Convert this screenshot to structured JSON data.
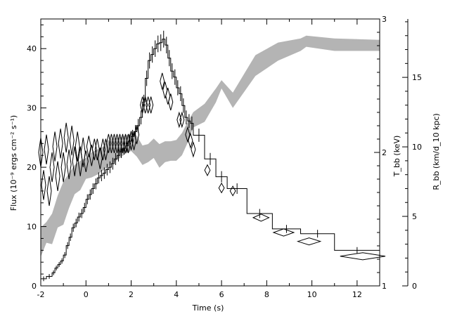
{
  "chart_data": {
    "type": "line",
    "xlabel": "Time (s)",
    "ylabel_left": "Flux (10⁻⁹ ergs cm⁻² s⁻¹)",
    "ylabel_right_inner": "T_bb (keV)",
    "ylabel_right_outer": "R_bb (km/d_10 kpc)",
    "xlim": [
      -2,
      13
    ],
    "ylim_flux": [
      0,
      45
    ],
    "ylim_temperature": [
      1,
      3
    ],
    "ylim_radius": [
      0,
      19.2
    ],
    "x_ticks": [
      -2,
      0,
      2,
      4,
      6,
      8,
      10,
      12
    ],
    "flux_ticks": [
      0,
      10,
      20,
      30,
      40
    ],
    "temperature_ticks": [
      1,
      2,
      3
    ],
    "radius_ticks": [
      0,
      5,
      10,
      15
    ],
    "grid": false,
    "legend": "none",
    "series": [
      {
        "name": "",
        "kind": "step",
        "x": [
          -2.0,
          -1.75,
          -1.5,
          -1.375,
          -1.25,
          -1.125,
          -1.0,
          -0.875,
          -0.75,
          -0.625,
          -0.5,
          -0.375,
          -0.25,
          -0.125,
          0.0,
          0.125,
          0.25,
          0.375,
          0.5,
          0.625,
          0.75,
          0.875,
          1.0,
          1.125,
          1.25,
          1.375,
          1.5,
          1.625,
          1.75,
          1.875,
          2.0,
          2.125,
          2.25,
          2.375,
          2.5,
          2.625,
          2.75,
          2.875,
          3.0,
          3.125,
          3.25,
          3.375,
          3.5,
          3.625,
          3.75,
          3.875,
          4.0,
          4.125,
          4.25,
          4.375,
          4.5,
          4.625,
          4.75,
          5.25,
          5.75,
          6.25,
          7.125,
          8.25,
          9.5,
          11.0
        ],
        "x_end": 13.0,
        "values": [
          1.2,
          1.6,
          2.2,
          3.0,
          3.6,
          4.2,
          5.2,
          6.8,
          8.2,
          9.8,
          10.6,
          11.6,
          12.2,
          13.2,
          14.6,
          15.4,
          16.4,
          17.2,
          18.2,
          18.6,
          19.0,
          19.6,
          20.0,
          20.6,
          21.4,
          22.0,
          22.6,
          23.2,
          23.6,
          24.4,
          25.2,
          26.0,
          27.0,
          28.4,
          31.0,
          35.0,
          38.0,
          39.0,
          40.0,
          40.8,
          41.0,
          41.6,
          40.6,
          38.4,
          36.2,
          35.2,
          33.4,
          32.4,
          30.4,
          28.4,
          27.8,
          27.4,
          25.4,
          21.4,
          18.4,
          16.4,
          12.2,
          9.6,
          8.8,
          6.0
        ]
      },
      {
        "name": "",
        "kind": "diamond-markers",
        "x": [
          -2.0,
          -1.875,
          -1.75,
          -1.625,
          -1.5,
          -1.375,
          -1.25,
          -1.125,
          -1.0,
          -0.875,
          -0.75,
          -0.625,
          -0.5,
          -0.375,
          -0.25,
          -0.125,
          0.0,
          0.125,
          0.25,
          0.375,
          0.5,
          0.625,
          0.75,
          0.875,
          1.0,
          1.125,
          1.25,
          1.375,
          1.5,
          1.625,
          1.75,
          1.875,
          2.0,
          2.125,
          2.25,
          2.5,
          2.625,
          2.75,
          2.875,
          3.375,
          3.5,
          3.625,
          3.75,
          4.125,
          4.25,
          4.5,
          4.625,
          4.75,
          5.375,
          6.0,
          6.5,
          7.75,
          8.75,
          9.875,
          12.25
        ],
        "x_half_width": [
          0.06,
          0.06,
          0.06,
          0.06,
          0.06,
          0.06,
          0.06,
          0.06,
          0.06,
          0.06,
          0.06,
          0.06,
          0.06,
          0.06,
          0.06,
          0.06,
          0.06,
          0.06,
          0.06,
          0.06,
          0.06,
          0.06,
          0.06,
          0.06,
          0.06,
          0.06,
          0.06,
          0.06,
          0.06,
          0.06,
          0.06,
          0.06,
          0.06,
          0.06,
          0.06,
          0.06,
          0.06,
          0.06,
          0.06,
          0.06,
          0.06,
          0.06,
          0.06,
          0.06,
          0.06,
          0.06,
          0.06,
          0.06,
          0.12,
          0.12,
          0.12,
          0.35,
          0.45,
          0.5,
          1.0
        ],
        "values": [
          22.5,
          17.0,
          23.0,
          16.0,
          20.0,
          23.5,
          18.5,
          24.0,
          20.0,
          25.0,
          20.5,
          24.5,
          21.0,
          23.5,
          21.0,
          22.5,
          21.0,
          23.5,
          22.0,
          23.0,
          23.0,
          21.5,
          23.0,
          23.0,
          24.0,
          24.0,
          24.0,
          24.0,
          24.0,
          24.0,
          24.0,
          24.0,
          24.5,
          24.5,
          25.5,
          30.5,
          30.5,
          30.5,
          30.5,
          34.5,
          33.0,
          32.0,
          31.0,
          28.0,
          28.0,
          25.5,
          24.5,
          23.0,
          19.5,
          16.5,
          16.0,
          11.5,
          9.0,
          7.5,
          5.0
        ],
        "half_heights": [
          2.5,
          2.5,
          2.5,
          2.5,
          2.5,
          2.5,
          2.5,
          2.5,
          2.5,
          2.5,
          2.5,
          2.5,
          2.5,
          2.5,
          2.5,
          2.5,
          1.8,
          1.8,
          1.8,
          1.8,
          1.8,
          1.8,
          1.8,
          1.8,
          1.6,
          1.6,
          1.6,
          1.6,
          1.6,
          1.6,
          1.6,
          1.6,
          1.6,
          1.6,
          1.6,
          1.4,
          1.4,
          1.4,
          1.4,
          1.4,
          1.4,
          1.4,
          1.4,
          1.2,
          1.2,
          1.2,
          1.2,
          1.2,
          0.9,
          0.8,
          0.8,
          0.6,
          0.6,
          0.6,
          0.6
        ]
      },
      {
        "name": "",
        "kind": "band",
        "axis": "radius",
        "color": "#b4b4b4",
        "x": [
          -2.0,
          -1.75,
          -1.5,
          -1.25,
          -1.0,
          -0.75,
          -0.5,
          -0.25,
          0.0,
          0.25,
          0.5,
          0.75,
          1.0,
          1.25,
          1.5,
          1.75,
          2.0,
          2.25,
          2.5,
          2.75,
          3.0,
          3.25,
          3.5,
          3.75,
          4.0,
          4.25,
          4.5,
          4.75,
          5.25,
          5.75,
          6.0,
          6.5,
          7.5,
          8.5,
          9.5,
          9.75,
          11.0,
          13.0
        ],
        "low": [
          2.1,
          3.1,
          3.0,
          4.2,
          4.4,
          5.6,
          6.6,
          6.9,
          7.7,
          7.8,
          8.0,
          8.3,
          8.6,
          8.9,
          9.2,
          9.5,
          9.7,
          9.3,
          8.7,
          8.9,
          9.2,
          8.5,
          8.9,
          9.0,
          9.0,
          9.4,
          10.3,
          11.4,
          11.8,
          13.2,
          14.2,
          12.8,
          15.1,
          16.2,
          16.9,
          17.2,
          16.9,
          16.9
        ],
        "high": [
          4.2,
          4.6,
          5.2,
          6.5,
          7.5,
          8.1,
          8.7,
          9.0,
          9.2,
          9.6,
          9.8,
          10.0,
          10.5,
          10.6,
          10.7,
          10.8,
          11.0,
          10.8,
          10.1,
          10.2,
          10.6,
          10.2,
          10.4,
          10.4,
          10.5,
          11.0,
          11.8,
          12.5,
          13.1,
          14.2,
          14.8,
          13.9,
          16.6,
          17.5,
          17.8,
          18.0,
          17.8,
          17.7
        ]
      }
    ]
  }
}
